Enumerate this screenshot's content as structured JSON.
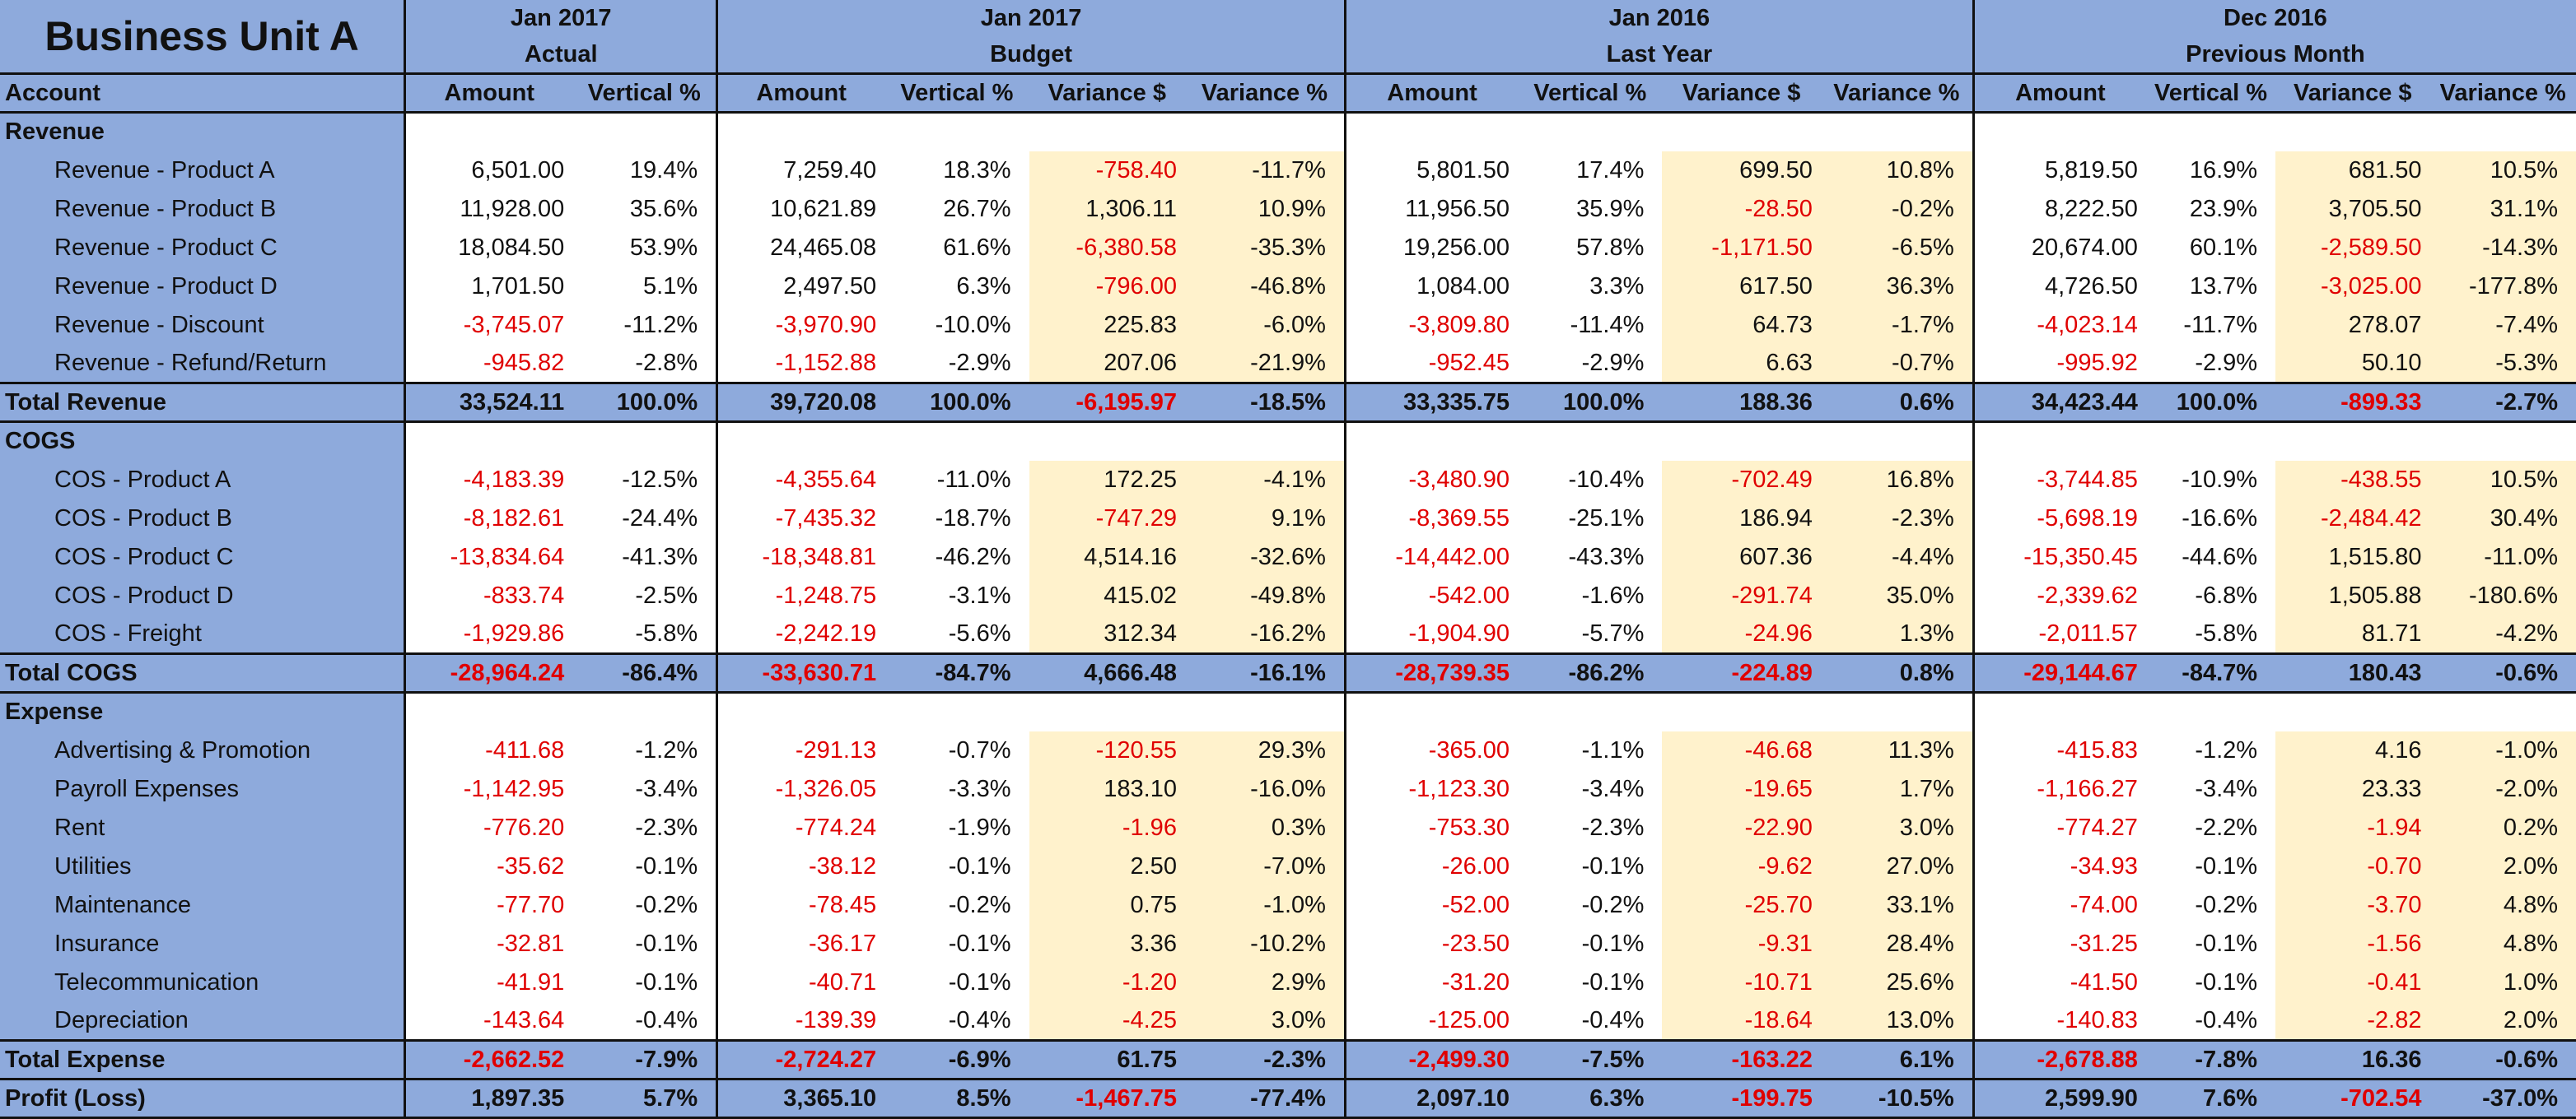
{
  "title": "Business Unit A",
  "periods": [
    {
      "line1": "Jan 2017",
      "line2": "Actual"
    },
    {
      "line1": "Jan 2017",
      "line2": "Budget"
    },
    {
      "line1": "Jan 2016",
      "line2": "Last Year"
    },
    {
      "line1": "Dec 2016",
      "line2": "Previous Month"
    }
  ],
  "column_headers": {
    "account": "Account",
    "amount": "Amount",
    "vertical_pct": "Vertical %",
    "variance_usd": "Variance $",
    "variance_pct": "Variance %"
  },
  "colors": {
    "header_blue": "#8eaadc",
    "variance_cream": "#fff2cc",
    "negative_red": "#e00000"
  },
  "rows": [
    {
      "type": "section",
      "label": "Revenue"
    },
    {
      "type": "item",
      "label": "Revenue - Product A",
      "v": [
        "6,501.00",
        "19.4%",
        "7,259.40",
        "18.3%",
        "-758.40",
        "-11.7%",
        "5,801.50",
        "17.4%",
        "699.50",
        "10.8%",
        "5,819.50",
        "16.9%",
        "681.50",
        "10.5%"
      ]
    },
    {
      "type": "item",
      "label": "Revenue - Product B",
      "v": [
        "11,928.00",
        "35.6%",
        "10,621.89",
        "26.7%",
        "1,306.11",
        "10.9%",
        "11,956.50",
        "35.9%",
        "-28.50",
        "-0.2%",
        "8,222.50",
        "23.9%",
        "3,705.50",
        "31.1%"
      ]
    },
    {
      "type": "item",
      "label": "Revenue - Product C",
      "v": [
        "18,084.50",
        "53.9%",
        "24,465.08",
        "61.6%",
        "-6,380.58",
        "-35.3%",
        "19,256.00",
        "57.8%",
        "-1,171.50",
        "-6.5%",
        "20,674.00",
        "60.1%",
        "-2,589.50",
        "-14.3%"
      ]
    },
    {
      "type": "item",
      "label": "Revenue - Product D",
      "v": [
        "1,701.50",
        "5.1%",
        "2,497.50",
        "6.3%",
        "-796.00",
        "-46.8%",
        "1,084.00",
        "3.3%",
        "617.50",
        "36.3%",
        "4,726.50",
        "13.7%",
        "-3,025.00",
        "-177.8%"
      ]
    },
    {
      "type": "item",
      "label": "Revenue - Discount",
      "v": [
        "-3,745.07",
        "-11.2%",
        "-3,970.90",
        "-10.0%",
        "225.83",
        "-6.0%",
        "-3,809.80",
        "-11.4%",
        "64.73",
        "-1.7%",
        "-4,023.14",
        "-11.7%",
        "278.07",
        "-7.4%"
      ]
    },
    {
      "type": "item",
      "label": "Revenue - Refund/Return",
      "v": [
        "-945.82",
        "-2.8%",
        "-1,152.88",
        "-2.9%",
        "207.06",
        "-21.9%",
        "-952.45",
        "-2.9%",
        "6.63",
        "-0.7%",
        "-995.92",
        "-2.9%",
        "50.10",
        "-5.3%"
      ]
    },
    {
      "type": "total",
      "label": "Total Revenue",
      "v": [
        "33,524.11",
        "100.0%",
        "39,720.08",
        "100.0%",
        "-6,195.97",
        "-18.5%",
        "33,335.75",
        "100.0%",
        "188.36",
        "0.6%",
        "34,423.44",
        "100.0%",
        "-899.33",
        "-2.7%"
      ]
    },
    {
      "type": "section",
      "label": "COGS"
    },
    {
      "type": "item",
      "label": "COS - Product A",
      "v": [
        "-4,183.39",
        "-12.5%",
        "-4,355.64",
        "-11.0%",
        "172.25",
        "-4.1%",
        "-3,480.90",
        "-10.4%",
        "-702.49",
        "16.8%",
        "-3,744.85",
        "-10.9%",
        "-438.55",
        "10.5%"
      ]
    },
    {
      "type": "item",
      "label": "COS - Product B",
      "v": [
        "-8,182.61",
        "-24.4%",
        "-7,435.32",
        "-18.7%",
        "-747.29",
        "9.1%",
        "-8,369.55",
        "-25.1%",
        "186.94",
        "-2.3%",
        "-5,698.19",
        "-16.6%",
        "-2,484.42",
        "30.4%"
      ]
    },
    {
      "type": "item",
      "label": "COS - Product C",
      "v": [
        "-13,834.64",
        "-41.3%",
        "-18,348.81",
        "-46.2%",
        "4,514.16",
        "-32.6%",
        "-14,442.00",
        "-43.3%",
        "607.36",
        "-4.4%",
        "-15,350.45",
        "-44.6%",
        "1,515.80",
        "-11.0%"
      ]
    },
    {
      "type": "item",
      "label": "COS - Product D",
      "v": [
        "-833.74",
        "-2.5%",
        "-1,248.75",
        "-3.1%",
        "415.02",
        "-49.8%",
        "-542.00",
        "-1.6%",
        "-291.74",
        "35.0%",
        "-2,339.62",
        "-6.8%",
        "1,505.88",
        "-180.6%"
      ]
    },
    {
      "type": "item",
      "label": "COS - Freight",
      "v": [
        "-1,929.86",
        "-5.8%",
        "-2,242.19",
        "-5.6%",
        "312.34",
        "-16.2%",
        "-1,904.90",
        "-5.7%",
        "-24.96",
        "1.3%",
        "-2,011.57",
        "-5.8%",
        "81.71",
        "-4.2%"
      ]
    },
    {
      "type": "total",
      "label": "Total COGS",
      "v": [
        "-28,964.24",
        "-86.4%",
        "-33,630.71",
        "-84.7%",
        "4,666.48",
        "-16.1%",
        "-28,739.35",
        "-86.2%",
        "-224.89",
        "0.8%",
        "-29,144.67",
        "-84.7%",
        "180.43",
        "-0.6%"
      ]
    },
    {
      "type": "section",
      "label": "Expense"
    },
    {
      "type": "item",
      "label": "Advertising & Promotion",
      "v": [
        "-411.68",
        "-1.2%",
        "-291.13",
        "-0.7%",
        "-120.55",
        "29.3%",
        "-365.00",
        "-1.1%",
        "-46.68",
        "11.3%",
        "-415.83",
        "-1.2%",
        "4.16",
        "-1.0%"
      ]
    },
    {
      "type": "item",
      "label": "Payroll Expenses",
      "v": [
        "-1,142.95",
        "-3.4%",
        "-1,326.05",
        "-3.3%",
        "183.10",
        "-16.0%",
        "-1,123.30",
        "-3.4%",
        "-19.65",
        "1.7%",
        "-1,166.27",
        "-3.4%",
        "23.33",
        "-2.0%"
      ]
    },
    {
      "type": "item",
      "label": "Rent",
      "v": [
        "-776.20",
        "-2.3%",
        "-774.24",
        "-1.9%",
        "-1.96",
        "0.3%",
        "-753.30",
        "-2.3%",
        "-22.90",
        "3.0%",
        "-774.27",
        "-2.2%",
        "-1.94",
        "0.2%"
      ]
    },
    {
      "type": "item",
      "label": "Utilities",
      "v": [
        "-35.62",
        "-0.1%",
        "-38.12",
        "-0.1%",
        "2.50",
        "-7.0%",
        "-26.00",
        "-0.1%",
        "-9.62",
        "27.0%",
        "-34.93",
        "-0.1%",
        "-0.70",
        "2.0%"
      ]
    },
    {
      "type": "item",
      "label": "Maintenance",
      "v": [
        "-77.70",
        "-0.2%",
        "-78.45",
        "-0.2%",
        "0.75",
        "-1.0%",
        "-52.00",
        "-0.2%",
        "-25.70",
        "33.1%",
        "-74.00",
        "-0.2%",
        "-3.70",
        "4.8%"
      ]
    },
    {
      "type": "item",
      "label": "Insurance",
      "v": [
        "-32.81",
        "-0.1%",
        "-36.17",
        "-0.1%",
        "3.36",
        "-10.2%",
        "-23.50",
        "-0.1%",
        "-9.31",
        "28.4%",
        "-31.25",
        "-0.1%",
        "-1.56",
        "4.8%"
      ]
    },
    {
      "type": "item",
      "label": "Telecommunication",
      "v": [
        "-41.91",
        "-0.1%",
        "-40.71",
        "-0.1%",
        "-1.20",
        "2.9%",
        "-31.20",
        "-0.1%",
        "-10.71",
        "25.6%",
        "-41.50",
        "-0.1%",
        "-0.41",
        "1.0%"
      ]
    },
    {
      "type": "item",
      "label": "Depreciation",
      "v": [
        "-143.64",
        "-0.4%",
        "-139.39",
        "-0.4%",
        "-4.25",
        "3.0%",
        "-125.00",
        "-0.4%",
        "-18.64",
        "13.0%",
        "-140.83",
        "-0.4%",
        "-2.82",
        "2.0%"
      ]
    },
    {
      "type": "total",
      "label": "Total Expense",
      "v": [
        "-2,662.52",
        "-7.9%",
        "-2,724.27",
        "-6.9%",
        "61.75",
        "-2.3%",
        "-2,499.30",
        "-7.5%",
        "-163.22",
        "6.1%",
        "-2,678.88",
        "-7.8%",
        "16.36",
        "-0.6%"
      ]
    },
    {
      "type": "total",
      "label": "Profit (Loss)",
      "v": [
        "1,897.35",
        "5.7%",
        "3,365.10",
        "8.5%",
        "-1,467.75",
        "-77.4%",
        "2,097.10",
        "6.3%",
        "-199.75",
        "-10.5%",
        "2,599.90",
        "7.6%",
        "-702.54",
        "-37.0%"
      ]
    }
  ]
}
